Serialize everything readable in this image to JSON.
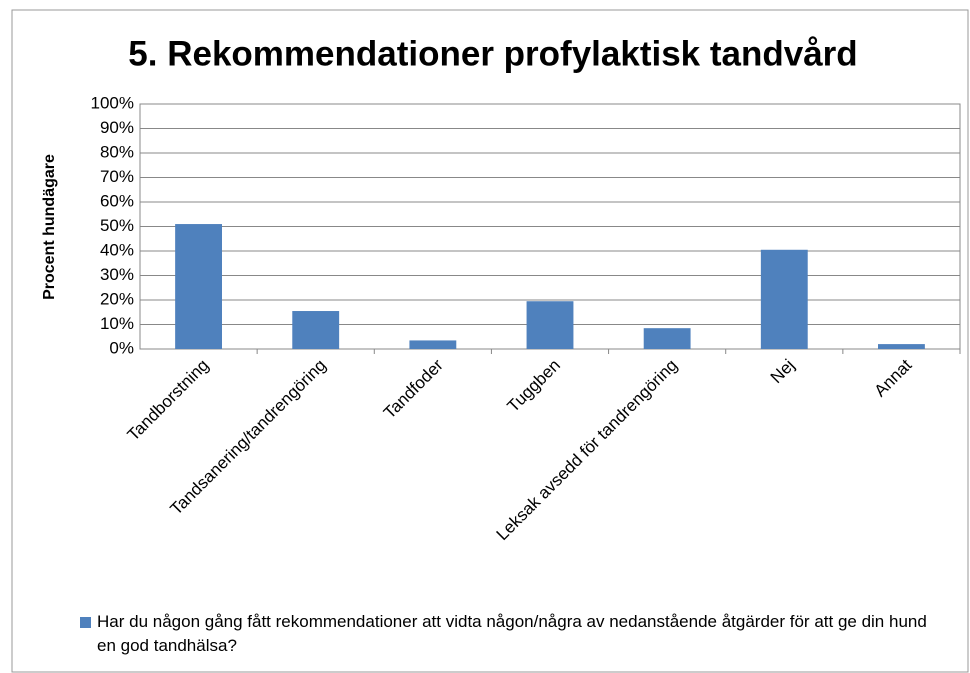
{
  "chart_data": {
    "type": "bar",
    "title": "5. Rekommendationer profylaktisk tandvård",
    "y_label": "Procent hundägare",
    "categories": [
      "Tandborstning",
      "Tandsanering/tandrengöring",
      "Tandfoder",
      "Tuggben",
      "Leksak avsedd för tandrengöring",
      "Nej",
      "Annat"
    ],
    "series": [
      {
        "name": "Har du någon gång fått rekommendationer att vidta någon/några av nedanstående åtgärder för att ge din hund en god tandhälsa?",
        "color": "#4f81bd",
        "values": [
          51,
          15.5,
          3.5,
          19.5,
          8.5,
          40.5,
          2
        ]
      }
    ],
    "ylim": [
      0,
      100
    ],
    "yticks": [
      {
        "value": 0,
        "label": "0%"
      },
      {
        "value": 10,
        "label": "10%"
      },
      {
        "value": 20,
        "label": "20%"
      },
      {
        "value": 30,
        "label": "30%"
      },
      {
        "value": 40,
        "label": "40%"
      },
      {
        "value": 50,
        "label": "50%"
      },
      {
        "value": 60,
        "label": "60%"
      },
      {
        "value": 70,
        "label": "70%"
      },
      {
        "value": 80,
        "label": "80%"
      },
      {
        "value": 90,
        "label": "90%"
      },
      {
        "value": 100,
        "label": "100%"
      }
    ],
    "grid": true,
    "legend": "bottom"
  }
}
